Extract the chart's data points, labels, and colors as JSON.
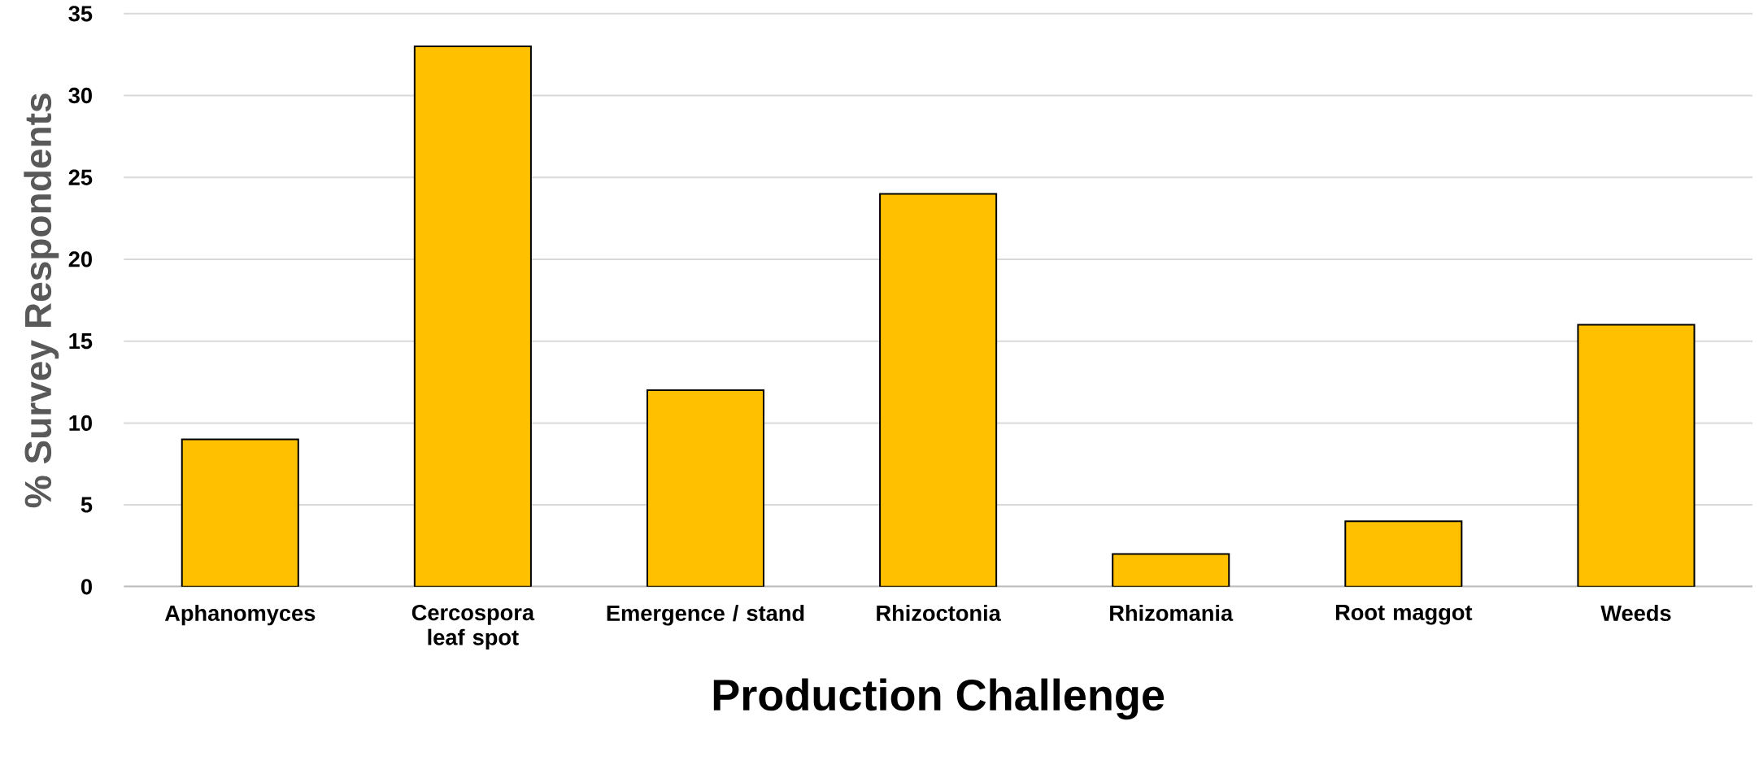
{
  "chart_data": {
    "type": "bar",
    "xlabel": "Production Challenge",
    "ylabel": "% Survey Respondents",
    "categories": [
      "Aphanomyces",
      "Cercospora leaf spot",
      "Emergence / stand",
      "Rhizoctonia",
      "Rhizomania",
      "Root maggot",
      "Weeds"
    ],
    "values": [
      9,
      33,
      12,
      24,
      2,
      4,
      16
    ],
    "color": "#ffc000",
    "ylim": [
      0,
      35
    ],
    "yticks": [
      0,
      5,
      10,
      15,
      20,
      25,
      30,
      35
    ],
    "grid": "y"
  }
}
